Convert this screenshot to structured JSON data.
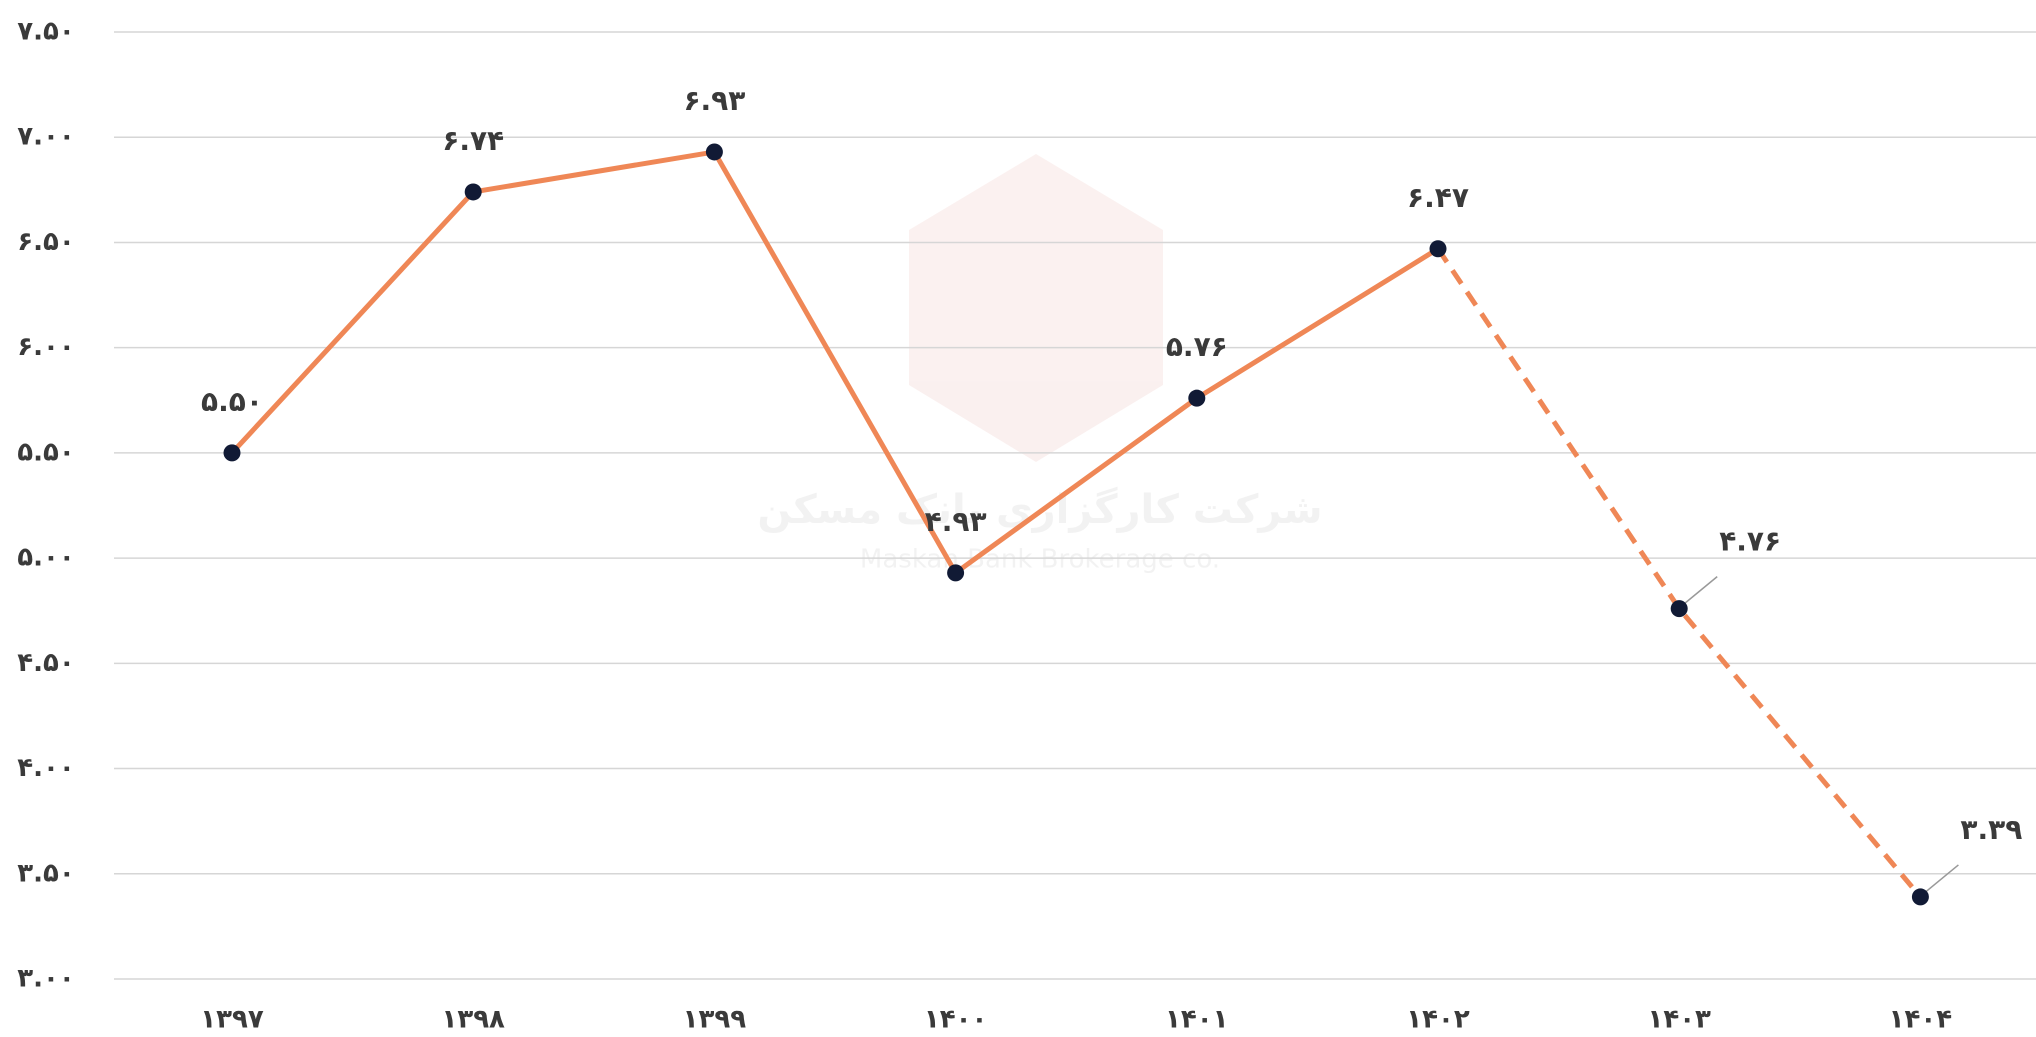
{
  "chart_data": {
    "type": "line",
    "watermark": [
      "شرکت کارگزاری بانک مسکن",
      "Maskan Bank Brokerage co."
    ],
    "categories": [
      "۱۳۹۷",
      "۱۳۹۸",
      "۱۳۹۹",
      "۱۴۰۰",
      "۱۴۰۱",
      "۱۴۰۲",
      "۱۴۰۳",
      "۱۴۰۴"
    ],
    "series": [
      {
        "color": "#ef8756",
        "marker_color": "#111a35",
        "dashed_from": 5,
        "values": [
          5.5,
          6.74,
          6.93,
          4.93,
          5.76,
          6.47,
          4.76,
          3.39
        ],
        "value_labels": [
          "۵.۵۰",
          "۶.۷۴",
          "۶.۹۳",
          "۴.۹۳",
          "۵.۷۶",
          "۶.۴۷",
          "۴.۷۶",
          "۳.۳۹"
        ]
      }
    ],
    "ylim": [
      3.0,
      7.5
    ],
    "yticks": [
      {
        "value": 3.0,
        "label": "۳.۰۰"
      },
      {
        "value": 3.5,
        "label": "۳.۵۰"
      },
      {
        "value": 4.0,
        "label": "۴.۰۰"
      },
      {
        "value": 4.5,
        "label": "۴.۵۰"
      },
      {
        "value": 5.0,
        "label": "۵.۰۰"
      },
      {
        "value": 5.5,
        "label": "۵.۵۰"
      },
      {
        "value": 6.0,
        "label": "۶.۰۰"
      },
      {
        "value": 6.5,
        "label": "۶.۵۰"
      },
      {
        "value": 7.0,
        "label": "۷.۰۰"
      },
      {
        "value": 7.5,
        "label": "۷.۵۰"
      }
    ],
    "grid": true
  }
}
